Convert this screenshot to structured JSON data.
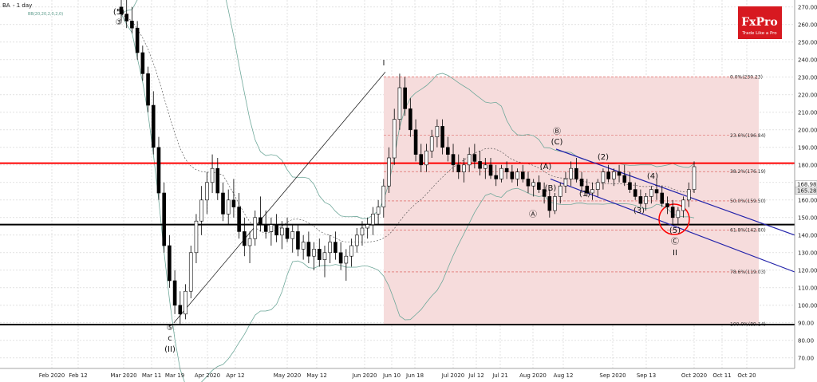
{
  "header": {
    "symbol": "BA",
    "timeframe": "- 1 day",
    "indicator": "BB(20,20,2,0,2,0)"
  },
  "brand": {
    "logo_text": "FxPro",
    "tagline": "Trade Like a Pro",
    "logo_bg": "#d71920"
  },
  "colors": {
    "candle_up": "#ffffff",
    "candle_down": "#000000",
    "fib_zone": "#f6dcdc",
    "resistance_line": "#ff0000",
    "support_line": "#000000",
    "channel": "#2222aa",
    "bollinger": "#6fa89a",
    "circle": "#ff0000"
  },
  "chart_data": {
    "type": "candlestick",
    "title": "",
    "instrument": "BA",
    "timeframe": "1 day",
    "x_ticks": [
      "Feb 2020",
      "Feb 12",
      "Mar 2020",
      "Mar 11",
      "Mar 19",
      "Apr 2020",
      "Apr 12",
      "May 2020",
      "May 12",
      "Jun 2020",
      "Jun 10",
      "Jun 18",
      "Jul 2020",
      "Jul 12",
      "Jul 21",
      "Aug 2020",
      "Aug 12",
      "Sep 2020",
      "Sep 13",
      "Oct 2020",
      "Oct 11",
      "Oct 20"
    ],
    "y_ticks": [
      70,
      80,
      90,
      100,
      110,
      120,
      130,
      140,
      150,
      160,
      170,
      180,
      190,
      200,
      210,
      220,
      230,
      240,
      250,
      260,
      270
    ],
    "ylim": [
      64,
      274
    ],
    "price_labels": [
      "168.98",
      "165.28"
    ],
    "grid": true,
    "horizontal_levels": [
      {
        "name": "resistance",
        "value": 181,
        "color": "#ff0000"
      },
      {
        "name": "support",
        "value": 146,
        "color": "#000000"
      },
      {
        "name": "low",
        "value": 89,
        "color": "#000000"
      }
    ],
    "fibonacci": {
      "levels": [
        {
          "label": "0.0%(230.23)",
          "value": 230.23
        },
        {
          "label": "23.6%(196.84)",
          "value": 196.84
        },
        {
          "label": "38.2%(176.19)",
          "value": 176.19
        },
        {
          "label": "50.0%(159.50)",
          "value": 159.5
        },
        {
          "label": "61.8%(142.80)",
          "value": 142.8
        },
        {
          "label": "78.6%(119.03)",
          "value": 119.03
        },
        {
          "label": "100.0%(89.14)",
          "value": 89.14
        }
      ]
    },
    "wave_labels": [
      "(5)",
      "③",
      "⑤",
      "c",
      "(II)",
      "I",
      "Ⓑ",
      "(C)",
      "(A)",
      "(B)",
      "Ⓐ",
      "(1)",
      "(2)",
      "(3)",
      "(4)",
      "(5)",
      "Ⓒ",
      "II"
    ],
    "candles": [
      {
        "o": 270,
        "h": 276,
        "l": 262,
        "c": 266
      },
      {
        "o": 266,
        "h": 274,
        "l": 258,
        "c": 262
      },
      {
        "o": 262,
        "h": 270,
        "l": 255,
        "c": 258
      },
      {
        "o": 258,
        "h": 262,
        "l": 240,
        "c": 244
      },
      {
        "o": 244,
        "h": 248,
        "l": 228,
        "c": 232
      },
      {
        "o": 232,
        "h": 236,
        "l": 210,
        "c": 214
      },
      {
        "o": 214,
        "h": 222,
        "l": 186,
        "c": 190
      },
      {
        "o": 190,
        "h": 196,
        "l": 160,
        "c": 164
      },
      {
        "o": 164,
        "h": 170,
        "l": 130,
        "c": 134
      },
      {
        "o": 134,
        "h": 140,
        "l": 110,
        "c": 114
      },
      {
        "o": 114,
        "h": 120,
        "l": 95,
        "c": 100
      },
      {
        "o": 100,
        "h": 108,
        "l": 89,
        "c": 95
      },
      {
        "o": 95,
        "h": 112,
        "l": 92,
        "c": 108
      },
      {
        "o": 108,
        "h": 134,
        "l": 104,
        "c": 130
      },
      {
        "o": 130,
        "h": 152,
        "l": 124,
        "c": 148
      },
      {
        "o": 148,
        "h": 168,
        "l": 140,
        "c": 160
      },
      {
        "o": 160,
        "h": 176,
        "l": 152,
        "c": 170
      },
      {
        "o": 170,
        "h": 186,
        "l": 164,
        "c": 178
      },
      {
        "o": 178,
        "h": 184,
        "l": 160,
        "c": 164
      },
      {
        "o": 164,
        "h": 170,
        "l": 148,
        "c": 152
      },
      {
        "o": 152,
        "h": 166,
        "l": 146,
        "c": 160
      },
      {
        "o": 160,
        "h": 172,
        "l": 150,
        "c": 156
      },
      {
        "o": 156,
        "h": 164,
        "l": 138,
        "c": 142
      },
      {
        "o": 142,
        "h": 150,
        "l": 128,
        "c": 134
      },
      {
        "o": 134,
        "h": 142,
        "l": 124,
        "c": 138
      },
      {
        "o": 138,
        "h": 154,
        "l": 134,
        "c": 150
      },
      {
        "o": 150,
        "h": 162,
        "l": 142,
        "c": 146
      },
      {
        "o": 146,
        "h": 154,
        "l": 138,
        "c": 142
      },
      {
        "o": 142,
        "h": 150,
        "l": 134,
        "c": 146
      },
      {
        "o": 146,
        "h": 152,
        "l": 136,
        "c": 140
      },
      {
        "o": 140,
        "h": 148,
        "l": 132,
        "c": 144
      },
      {
        "o": 144,
        "h": 150,
        "l": 136,
        "c": 138
      },
      {
        "o": 138,
        "h": 146,
        "l": 130,
        "c": 142
      },
      {
        "o": 142,
        "h": 146,
        "l": 128,
        "c": 132
      },
      {
        "o": 132,
        "h": 140,
        "l": 126,
        "c": 136
      },
      {
        "o": 136,
        "h": 142,
        "l": 124,
        "c": 128
      },
      {
        "o": 128,
        "h": 136,
        "l": 120,
        "c": 132
      },
      {
        "o": 132,
        "h": 138,
        "l": 122,
        "c": 126
      },
      {
        "o": 126,
        "h": 134,
        "l": 116,
        "c": 130
      },
      {
        "o": 130,
        "h": 140,
        "l": 124,
        "c": 136
      },
      {
        "o": 136,
        "h": 142,
        "l": 126,
        "c": 130
      },
      {
        "o": 130,
        "h": 136,
        "l": 120,
        "c": 124
      },
      {
        "o": 124,
        "h": 132,
        "l": 114,
        "c": 128
      },
      {
        "o": 128,
        "h": 138,
        "l": 122,
        "c": 134
      },
      {
        "o": 134,
        "h": 144,
        "l": 130,
        "c": 140
      },
      {
        "o": 140,
        "h": 148,
        "l": 134,
        "c": 144
      },
      {
        "o": 144,
        "h": 150,
        "l": 138,
        "c": 146
      },
      {
        "o": 146,
        "h": 156,
        "l": 140,
        "c": 152
      },
      {
        "o": 152,
        "h": 160,
        "l": 146,
        "c": 156
      },
      {
        "o": 156,
        "h": 172,
        "l": 150,
        "c": 168
      },
      {
        "o": 168,
        "h": 190,
        "l": 164,
        "c": 184
      },
      {
        "o": 184,
        "h": 212,
        "l": 180,
        "c": 206
      },
      {
        "o": 206,
        "h": 232,
        "l": 200,
        "c": 224
      },
      {
        "o": 224,
        "h": 230,
        "l": 208,
        "c": 212
      },
      {
        "o": 212,
        "h": 218,
        "l": 196,
        "c": 200
      },
      {
        "o": 200,
        "h": 206,
        "l": 182,
        "c": 186
      },
      {
        "o": 186,
        "h": 192,
        "l": 176,
        "c": 180
      },
      {
        "o": 180,
        "h": 192,
        "l": 176,
        "c": 188
      },
      {
        "o": 188,
        "h": 200,
        "l": 184,
        "c": 196
      },
      {
        "o": 196,
        "h": 206,
        "l": 190,
        "c": 202
      },
      {
        "o": 202,
        "h": 206,
        "l": 186,
        "c": 190
      },
      {
        "o": 190,
        "h": 196,
        "l": 182,
        "c": 186
      },
      {
        "o": 186,
        "h": 192,
        "l": 176,
        "c": 180
      },
      {
        "o": 180,
        "h": 186,
        "l": 172,
        "c": 176
      },
      {
        "o": 176,
        "h": 184,
        "l": 170,
        "c": 180
      },
      {
        "o": 180,
        "h": 190,
        "l": 176,
        "c": 186
      },
      {
        "o": 186,
        "h": 192,
        "l": 178,
        "c": 182
      },
      {
        "o": 182,
        "h": 188,
        "l": 174,
        "c": 178
      },
      {
        "o": 178,
        "h": 184,
        "l": 172,
        "c": 180
      },
      {
        "o": 180,
        "h": 184,
        "l": 172,
        "c": 174
      },
      {
        "o": 174,
        "h": 180,
        "l": 168,
        "c": 172
      },
      {
        "o": 172,
        "h": 180,
        "l": 170,
        "c": 178
      },
      {
        "o": 178,
        "h": 182,
        "l": 172,
        "c": 176
      },
      {
        "o": 176,
        "h": 180,
        "l": 170,
        "c": 172
      },
      {
        "o": 172,
        "h": 178,
        "l": 168,
        "c": 176
      },
      {
        "o": 176,
        "h": 180,
        "l": 170,
        "c": 172
      },
      {
        "o": 172,
        "h": 176,
        "l": 164,
        "c": 168
      },
      {
        "o": 168,
        "h": 172,
        "l": 162,
        "c": 170
      },
      {
        "o": 170,
        "h": 174,
        "l": 164,
        "c": 166
      },
      {
        "o": 166,
        "h": 170,
        "l": 158,
        "c": 162
      },
      {
        "o": 162,
        "h": 166,
        "l": 150,
        "c": 154
      },
      {
        "o": 154,
        "h": 164,
        "l": 152,
        "c": 162
      },
      {
        "o": 162,
        "h": 170,
        "l": 158,
        "c": 168
      },
      {
        "o": 168,
        "h": 176,
        "l": 164,
        "c": 172
      },
      {
        "o": 172,
        "h": 182,
        "l": 168,
        "c": 178
      },
      {
        "o": 178,
        "h": 184,
        "l": 170,
        "c": 172
      },
      {
        "o": 172,
        "h": 176,
        "l": 164,
        "c": 168
      },
      {
        "o": 168,
        "h": 172,
        "l": 162,
        "c": 164
      },
      {
        "o": 164,
        "h": 170,
        "l": 160,
        "c": 166
      },
      {
        "o": 166,
        "h": 172,
        "l": 162,
        "c": 170
      },
      {
        "o": 170,
        "h": 178,
        "l": 166,
        "c": 176
      },
      {
        "o": 176,
        "h": 180,
        "l": 170,
        "c": 172
      },
      {
        "o": 172,
        "h": 178,
        "l": 168,
        "c": 176
      },
      {
        "o": 176,
        "h": 180,
        "l": 170,
        "c": 174
      },
      {
        "o": 174,
        "h": 180,
        "l": 168,
        "c": 170
      },
      {
        "o": 170,
        "h": 176,
        "l": 164,
        "c": 166
      },
      {
        "o": 166,
        "h": 170,
        "l": 160,
        "c": 162
      },
      {
        "o": 162,
        "h": 166,
        "l": 156,
        "c": 158
      },
      {
        "o": 158,
        "h": 164,
        "l": 154,
        "c": 162
      },
      {
        "o": 162,
        "h": 168,
        "l": 158,
        "c": 166
      },
      {
        "o": 166,
        "h": 172,
        "l": 160,
        "c": 164
      },
      {
        "o": 164,
        "h": 168,
        "l": 156,
        "c": 158
      },
      {
        "o": 158,
        "h": 162,
        "l": 152,
        "c": 156
      },
      {
        "o": 156,
        "h": 160,
        "l": 146,
        "c": 150
      },
      {
        "o": 150,
        "h": 156,
        "l": 146,
        "c": 154
      },
      {
        "o": 154,
        "h": 162,
        "l": 150,
        "c": 160
      },
      {
        "o": 160,
        "h": 170,
        "l": 156,
        "c": 166
      },
      {
        "o": 166,
        "h": 182,
        "l": 164,
        "c": 179
      }
    ]
  }
}
